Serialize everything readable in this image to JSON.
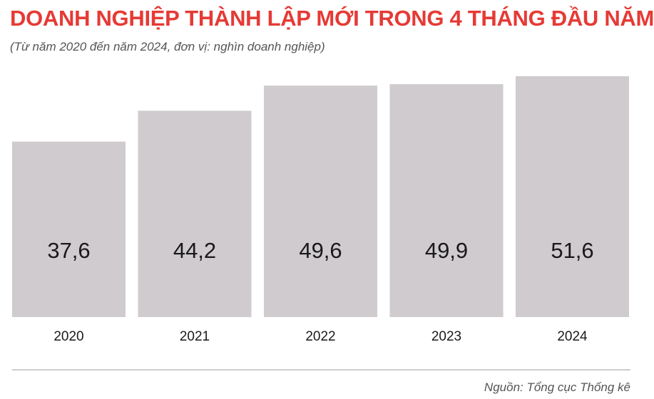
{
  "title": "DOANH NGHIỆP THÀNH LẬP MỚI TRONG 4 THÁNG ĐẦU NĂM",
  "subtitle": "(Từ năm 2020 đến năm 2024, đơn vị: nghìn doanh nghiệp)",
  "source": "Nguồn: Tổng cục Thống kê",
  "colors": {
    "title": "#e63a35",
    "bar": "#cfcbcf",
    "text": "#1a1a1a",
    "divider": "#cfcbcf"
  },
  "chart_data": {
    "type": "bar",
    "title": "DOANH NGHIỆP THÀNH LẬP MỚI TRONG 4 THÁNG ĐẦU NĂM",
    "subtitle": "(Từ năm 2020 đến năm 2024, đơn vị: nghìn doanh nghiệp)",
    "categories": [
      "2020",
      "2021",
      "2022",
      "2023",
      "2024"
    ],
    "values": [
      37.6,
      44.2,
      49.6,
      49.9,
      51.6
    ],
    "value_labels": [
      "37,6",
      "44,2",
      "49,6",
      "49,9",
      "51,6"
    ],
    "xlabel": "",
    "ylabel": "",
    "grid": false,
    "legend": "none"
  }
}
